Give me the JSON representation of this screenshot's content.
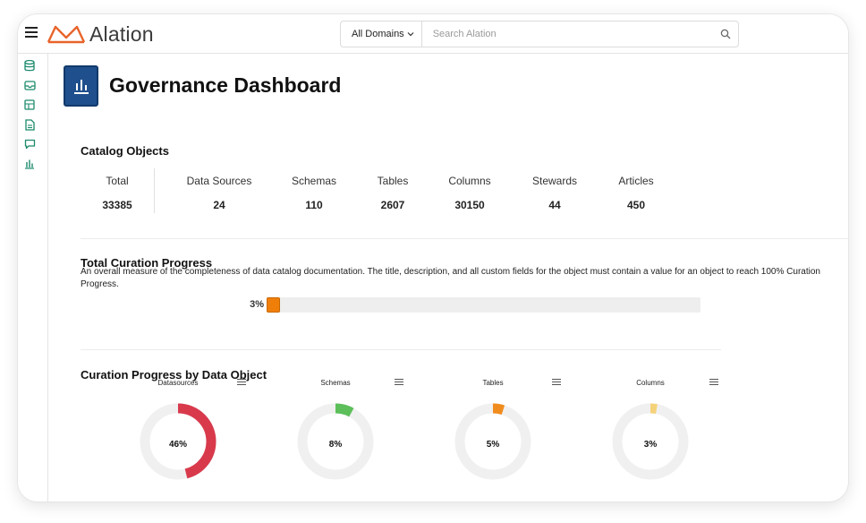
{
  "app": {
    "name": "Alation"
  },
  "search": {
    "domain_label": "All Domains",
    "placeholder": "Search Alation"
  },
  "page": {
    "title": "Governance Dashboard"
  },
  "catalog": {
    "title": "Catalog Objects",
    "stats": [
      {
        "label": "Total",
        "value": "33385"
      },
      {
        "label": "Data Sources",
        "value": "24"
      },
      {
        "label": "Schemas",
        "value": "110"
      },
      {
        "label": "Tables",
        "value": "2607"
      },
      {
        "label": "Columns",
        "value": "30150"
      },
      {
        "label": "Stewards",
        "value": "44"
      },
      {
        "label": "Articles",
        "value": "450"
      }
    ]
  },
  "curation": {
    "title": "Total Curation Progress",
    "description": "An overall measure of the completeness of data catalog documentation. The title, description, and all custom fields for the object must contain a value for an object to reach 100% Curation Progress.",
    "percent_label": "3%",
    "percent_value": 3
  },
  "by_object": {
    "title": "Curation Progress by Data Object",
    "charts": [
      {
        "name": "Datasources",
        "label": "46%",
        "value": 46,
        "color": "#d83a4c",
        "stroke": "#a8202f"
      },
      {
        "name": "Schemas",
        "label": "8%",
        "value": 8,
        "color": "#5cbf5a",
        "stroke": "#3f9a3e"
      },
      {
        "name": "Tables",
        "label": "5%",
        "value": 5,
        "color": "#f08c1e",
        "stroke": "#c26a0c"
      },
      {
        "name": "Columns",
        "label": "3%",
        "value": 3,
        "color": "#f5d27a",
        "stroke": "#d8b050"
      }
    ]
  },
  "colors": {
    "accent": "#1f4f8c",
    "sidebar_icon": "#1b8a6b",
    "progress": "#f07f0a",
    "logo": "#e8642a"
  },
  "sidebar": {
    "icons": [
      "database-icon",
      "inbox-icon",
      "table-icon",
      "document-icon",
      "chat-icon",
      "bar-chart-icon"
    ]
  }
}
